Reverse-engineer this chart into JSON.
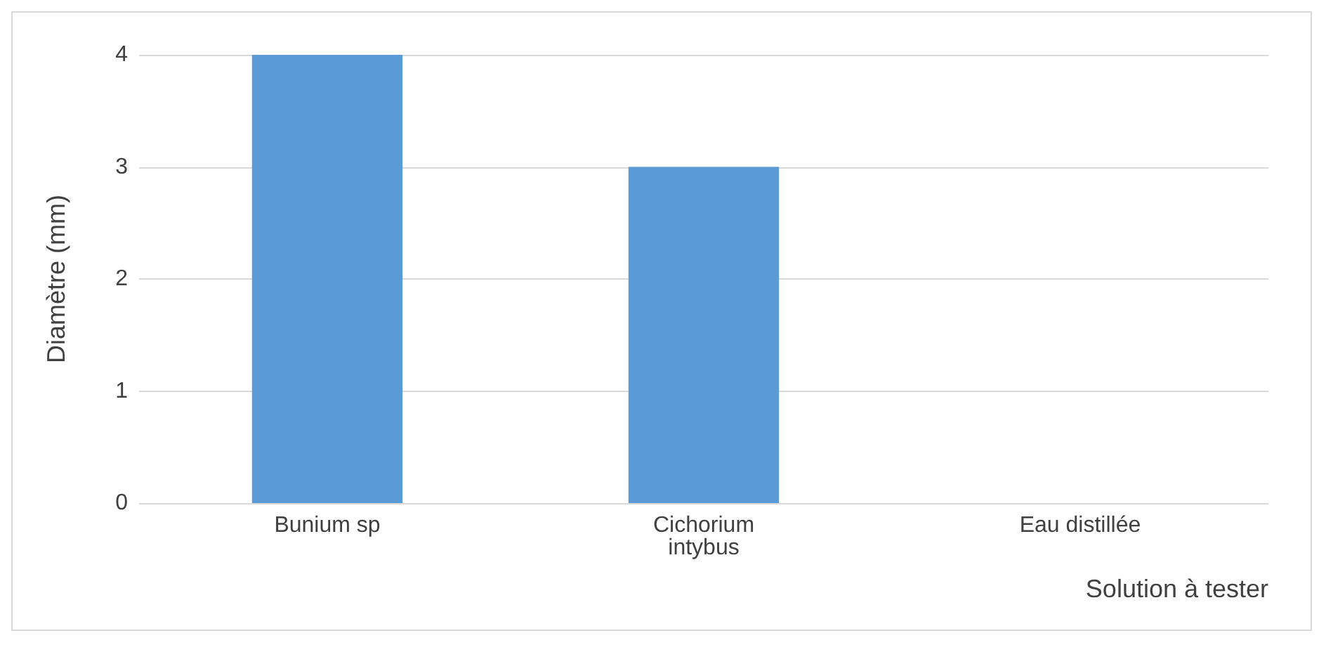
{
  "chart_data": {
    "type": "bar",
    "xlabel": "Solution à tester",
    "ylabel": "Diamètre (mm)",
    "categories": [
      "Bunium sp",
      "Cichorium\nintybus",
      "Eau distillée"
    ],
    "values": [
      4,
      3,
      0
    ],
    "color": "#5b9bd5",
    "ylim": [
      0,
      4
    ],
    "yticks": [
      0,
      1,
      2,
      3,
      4
    ],
    "grid": "y"
  }
}
